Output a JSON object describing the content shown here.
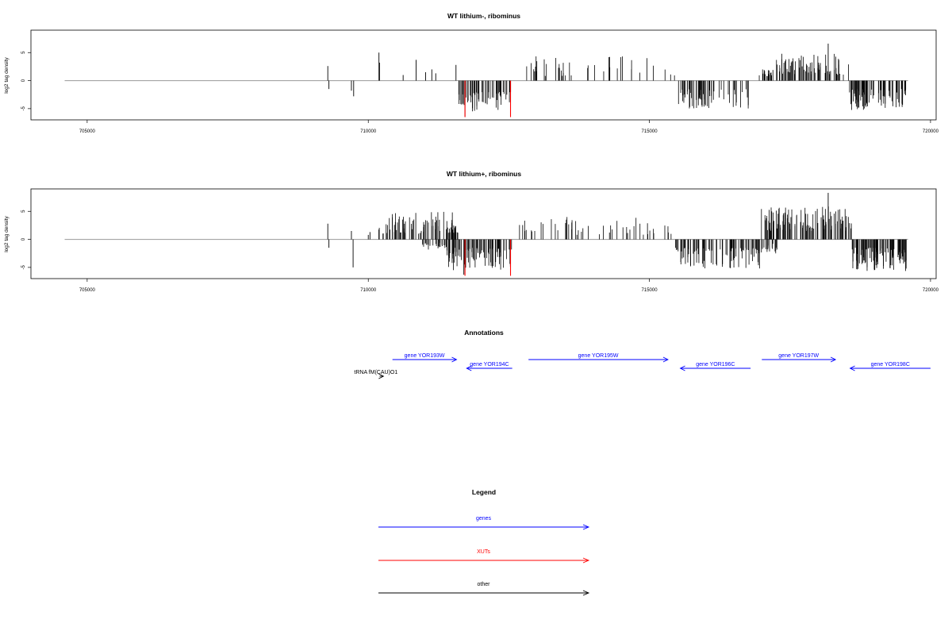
{
  "chart_data": [
    {
      "type": "bar",
      "title": "WT lithium-, ribominus",
      "ylabel": "log2 tag density",
      "xlim": [
        704000,
        720100
      ],
      "ylim": [
        -7,
        9
      ],
      "xticks": [
        705000,
        710000,
        715000,
        720000
      ],
      "xtick_labels": [
        "705000",
        "710000",
        "715000",
        "720000"
      ],
      "yticks": [
        5,
        0,
        -5
      ],
      "ytick_labels": [
        "5",
        "0",
        "-5"
      ],
      "baseline_range": [
        704600,
        719600
      ],
      "series": [
        {
          "values": [
            [
              709280,
              2.6
            ],
            [
              709300,
              -1.5
            ],
            [
              709700,
              -1.8
            ],
            [
              709740,
              -2.8
            ],
            [
              710190,
              5.0
            ],
            [
              710200,
              3.2
            ],
            [
              710620,
              1.0
            ],
            [
              710850,
              3.7
            ],
            [
              711020,
              1.5
            ],
            [
              711130,
              2.0
            ],
            [
              711200,
              1.3
            ],
            [
              711560,
              2.8
            ]
          ],
          "segments": [
            {
              "from": 711580,
              "to": 712550,
              "sign": -1,
              "min": 2.0,
              "max": 5.5,
              "density": 55,
              "seed": 11
            },
            {
              "from": 712780,
              "to": 715450,
              "sign": 1,
              "min": 0.8,
              "max": 4.5,
              "density": 40,
              "seed": 23
            },
            {
              "from": 715500,
              "to": 716830,
              "sign": -1,
              "min": 1.5,
              "max": 5.0,
              "density": 60,
              "seed": 37
            },
            {
              "from": 716950,
              "to": 717200,
              "sign": 1,
              "min": 0.8,
              "max": 2.0,
              "density": 20,
              "seed": 41
            },
            {
              "from": 717250,
              "to": 718550,
              "sign": 1,
              "min": 1.0,
              "max": 5.0,
              "density": 75,
              "seed": 53
            },
            {
              "from": 718560,
              "to": 719570,
              "sign": -1,
              "min": 1.5,
              "max": 5.3,
              "density": 80,
              "seed": 67
            }
          ],
          "highlights": [
            [
              711720,
              -6.5
            ],
            [
              712530,
              -6.5
            ],
            [
              718180,
              6.6
            ]
          ]
        }
      ],
      "red_marks": [
        [
          711720,
          -6.5
        ],
        [
          712530,
          -6.5
        ]
      ]
    },
    {
      "type": "bar",
      "title": "WT lithium+, ribominus",
      "ylabel": "log2 tag density",
      "xlim": [
        704000,
        720100
      ],
      "ylim": [
        -7,
        9
      ],
      "xticks": [
        705000,
        710000,
        715000,
        720000
      ],
      "xtick_labels": [
        "705000",
        "710000",
        "715000",
        "720000"
      ],
      "yticks": [
        5,
        0,
        -5
      ],
      "ytick_labels": [
        "5",
        "0",
        "-5"
      ],
      "baseline_range": [
        704600,
        719600
      ],
      "series": [
        {
          "values": [
            [
              709280,
              2.8
            ],
            [
              709300,
              -1.5
            ],
            [
              709700,
              1.5
            ],
            [
              709730,
              -5.0
            ],
            [
              710000,
              0.8
            ],
            [
              710030,
              1.3
            ]
          ],
          "segments": [
            {
              "from": 710180,
              "to": 711560,
              "sign": 1,
              "min": 1.0,
              "max": 5.0,
              "density": 70,
              "seed": 71
            },
            {
              "from": 710950,
              "to": 711400,
              "sign": -1,
              "min": 0.6,
              "max": 2.0,
              "density": 25,
              "seed": 73
            },
            {
              "from": 711400,
              "to": 712560,
              "sign": -1,
              "min": 1.5,
              "max": 5.5,
              "density": 90,
              "seed": 79
            },
            {
              "from": 711420,
              "to": 711600,
              "sign": 1,
              "min": 1.0,
              "max": 2.5,
              "density": 15,
              "seed": 83
            },
            {
              "from": 712600,
              "to": 715450,
              "sign": 1,
              "min": 0.8,
              "max": 4.0,
              "density": 50,
              "seed": 89
            },
            {
              "from": 715450,
              "to": 716960,
              "sign": -1,
              "min": 1.5,
              "max": 5.5,
              "density": 85,
              "seed": 97
            },
            {
              "from": 716970,
              "to": 718600,
              "sign": 1,
              "min": 1.5,
              "max": 6.0,
              "density": 110,
              "seed": 101
            },
            {
              "from": 716900,
              "to": 717300,
              "sign": -1,
              "min": 0.8,
              "max": 2.5,
              "density": 20,
              "seed": 103
            },
            {
              "from": 718600,
              "to": 719580,
              "sign": -1,
              "min": 1.5,
              "max": 5.7,
              "density": 100,
              "seed": 107
            }
          ],
          "highlights": [
            [
              718180,
              8.3
            ],
            [
              711700,
              -6.3
            ]
          ]
        }
      ],
      "red_marks": [
        [
          711720,
          -6.5
        ],
        [
          712530,
          -6.5
        ]
      ]
    }
  ],
  "annotations": {
    "title": "Annotations",
    "features": [
      {
        "label": "gene YOR193W",
        "from": 710430,
        "to": 711570,
        "dir": 1,
        "row": 0,
        "color": "#0000ff"
      },
      {
        "label": "gene YOR194C",
        "from": 711750,
        "to": 712560,
        "dir": -1,
        "row": 1,
        "color": "#0000ff"
      },
      {
        "label": "gene YOR195W",
        "from": 712850,
        "to": 715330,
        "dir": 1,
        "row": 0,
        "color": "#0000ff"
      },
      {
        "label": "gene YOR196C",
        "from": 715550,
        "to": 716800,
        "dir": -1,
        "row": 1,
        "color": "#0000ff"
      },
      {
        "label": "gene YOR197W",
        "from": 717000,
        "to": 718310,
        "dir": 1,
        "row": 0,
        "color": "#0000ff"
      },
      {
        "label": "gene YOR198C",
        "from": 718570,
        "to": 720000,
        "dir": -1,
        "row": 1,
        "color": "#0000ff"
      },
      {
        "label": "tRNA fM(CAU)O1",
        "from": 710200,
        "to": 710270,
        "dir": 1,
        "row": 2,
        "color": "#000000"
      }
    ]
  },
  "legend": {
    "title": "Legend",
    "items": [
      {
        "label": "genes",
        "color": "#0000ff"
      },
      {
        "label": "XUTs",
        "color": "#ff0000"
      },
      {
        "label": "other",
        "color": "#000000"
      }
    ]
  }
}
